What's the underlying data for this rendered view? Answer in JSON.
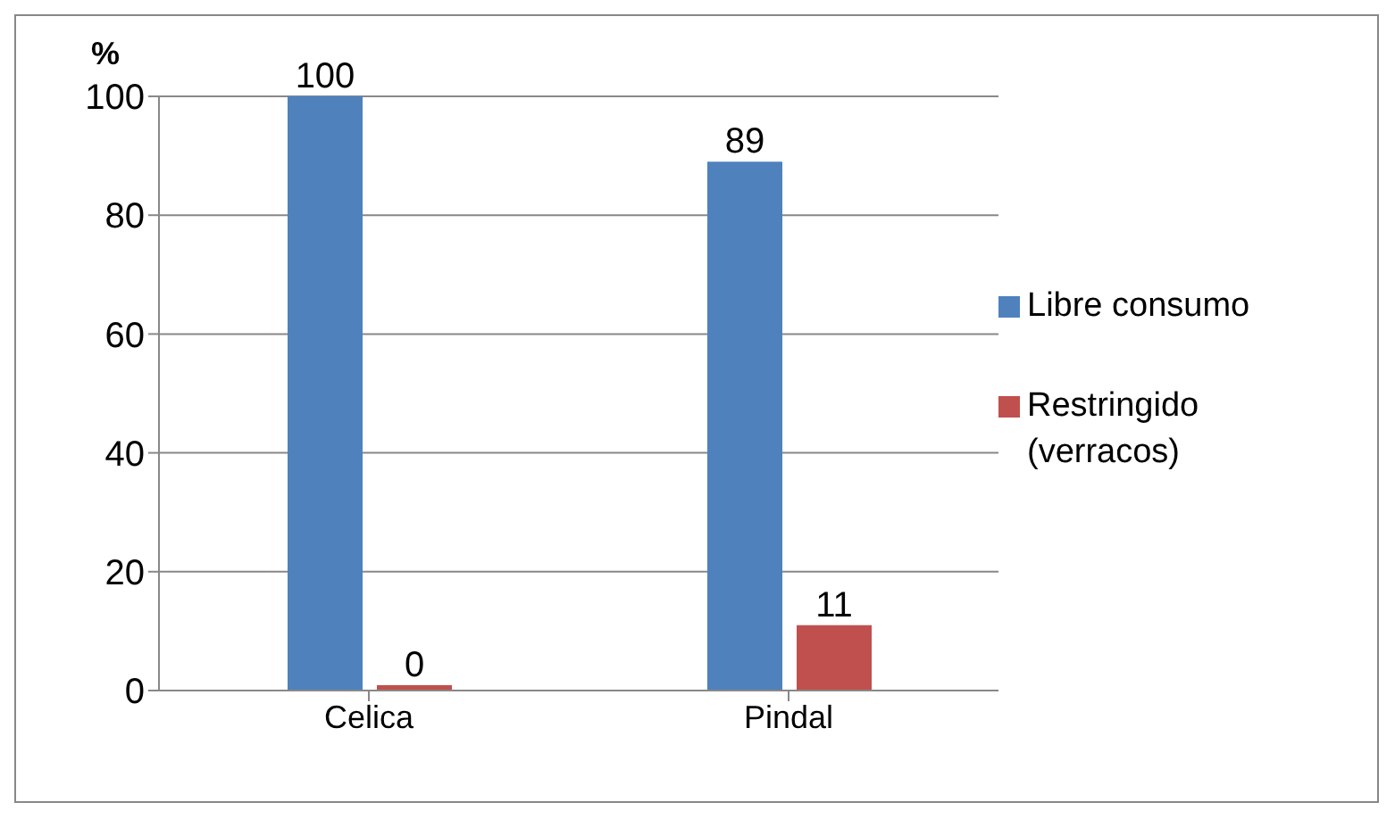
{
  "chart_data": {
    "type": "bar",
    "ylabel": "%",
    "categories": [
      "Celica",
      "Pindal"
    ],
    "series": [
      {
        "name": "Libre consumo",
        "color": "#4f81bd",
        "values": [
          100,
          89
        ]
      },
      {
        "name": "Restringido (verracos)",
        "color": "#c0504d",
        "values": [
          0,
          11
        ]
      }
    ],
    "ylim": [
      0,
      100
    ],
    "yticks": [
      0,
      20,
      40,
      60,
      80,
      100
    ],
    "grid": "y",
    "legend": "right",
    "data_labels": true
  }
}
